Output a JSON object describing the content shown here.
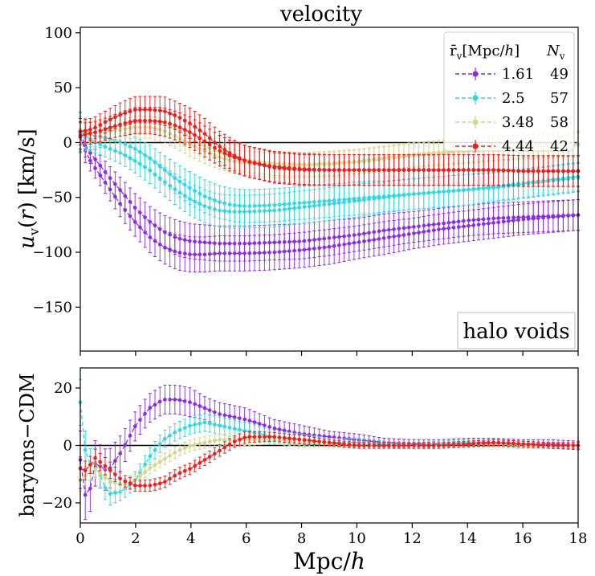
{
  "chart_data": [
    {
      "type": "line",
      "title": "velocity",
      "ylabel": "u_v(r) [km/s]",
      "xlabel": "",
      "xlim": [
        0,
        18
      ],
      "ylim": [
        -190,
        105
      ],
      "yticks": [
        -150,
        -100,
        -50,
        0,
        50,
        100
      ],
      "ytick_labels": [
        "−150",
        "−100",
        "−50",
        "0",
        "50",
        "100"
      ],
      "zero_line": 0,
      "annotation": "halo voids",
      "legend": {
        "position": "top-right",
        "header_radius": "r̄v[Mpc/h]",
        "header_count": "Nv",
        "entries": [
          {
            "name": "1.61",
            "count": "49",
            "color": "#8b2be2"
          },
          {
            "name": "2.5",
            "count": "57",
            "color": "#2ed8e0"
          },
          {
            "name": "3.48",
            "count": "58",
            "color": "#d2d68c"
          },
          {
            "name": "4.44",
            "count": "42",
            "color": "#ee1c1c"
          }
        ]
      },
      "x": [
        0,
        0.25,
        0.5,
        1,
        1.5,
        2,
        2.5,
        3,
        3.5,
        4,
        4.5,
        5,
        5.5,
        6,
        7,
        8,
        9,
        10,
        11,
        12,
        13,
        14,
        15,
        16,
        17,
        18
      ],
      "series": [
        {
          "name": "1.61 baryons",
          "color": "#8b2be2",
          "values": [
            5,
            -12,
            -22,
            -40,
            -58,
            -73,
            -86,
            -95,
            -100,
            -102,
            -102,
            -101,
            -101,
            -101,
            -100,
            -98,
            -95,
            -91,
            -87,
            -83,
            -79,
            -76,
            -73,
            -70,
            -68,
            -66
          ],
          "err": [
            14,
            10,
            9,
            10,
            12,
            13,
            14,
            15,
            16,
            16,
            16,
            16,
            16,
            16,
            16,
            16,
            16,
            15,
            15,
            14,
            14,
            14,
            14,
            14,
            14,
            14
          ]
        },
        {
          "name": "1.61 CDM",
          "color": "#8b2be2",
          "values": [
            8,
            -6,
            -14,
            -30,
            -45,
            -60,
            -72,
            -81,
            -87,
            -90,
            -91,
            -92,
            -92,
            -92,
            -91,
            -90,
            -87,
            -84,
            -80,
            -77,
            -74,
            -71,
            -69,
            -68,
            -67,
            -66
          ],
          "err": [
            14,
            10,
            9,
            10,
            12,
            13,
            14,
            15,
            16,
            16,
            16,
            16,
            16,
            16,
            16,
            16,
            16,
            15,
            15,
            14,
            14,
            14,
            14,
            14,
            14,
            14
          ]
        },
        {
          "name": "2.5 baryons",
          "color": "#2ed8e0",
          "values": [
            9,
            5,
            1,
            -5,
            -10,
            -17,
            -25,
            -35,
            -44,
            -52,
            -58,
            -62,
            -63,
            -63,
            -62,
            -59,
            -56,
            -53,
            -50,
            -47,
            -45,
            -43,
            -41,
            -38,
            -35,
            -32
          ],
          "err": [
            18,
            12,
            10,
            9,
            10,
            11,
            12,
            13,
            14,
            15,
            15,
            15,
            15,
            15,
            15,
            15,
            15,
            15,
            14,
            14,
            14,
            14,
            13,
            13,
            13,
            13
          ]
        },
        {
          "name": "2.5 CDM",
          "color": "#2ed8e0",
          "values": [
            10,
            8,
            6,
            4,
            0,
            -6,
            -14,
            -24,
            -34,
            -42,
            -49,
            -54,
            -57,
            -58,
            -57,
            -55,
            -53,
            -51,
            -49,
            -47,
            -45,
            -43,
            -40,
            -37,
            -34,
            -31
          ],
          "err": [
            18,
            12,
            10,
            9,
            10,
            11,
            12,
            13,
            14,
            15,
            15,
            15,
            15,
            15,
            15,
            15,
            15,
            15,
            14,
            14,
            14,
            14,
            13,
            13,
            13,
            13
          ]
        },
        {
          "name": "3.48 baryons",
          "color": "#d2d68c",
          "values": [
            12,
            10,
            9,
            10,
            12,
            14,
            14,
            11,
            5,
            -2,
            -8,
            -13,
            -17,
            -19,
            -21,
            -21,
            -20,
            -18,
            -15,
            -12,
            -10,
            -8,
            -6,
            -4,
            -3,
            -2
          ],
          "err": [
            12,
            10,
            9,
            9,
            9,
            10,
            10,
            11,
            11,
            11,
            11,
            11,
            11,
            11,
            11,
            11,
            11,
            11,
            11,
            11,
            11,
            11,
            11,
            11,
            11,
            11
          ]
        },
        {
          "name": "3.48 CDM",
          "color": "#d2d68c",
          "values": [
            10,
            9,
            9,
            12,
            16,
            19,
            20,
            18,
            12,
            4,
            -3,
            -9,
            -13,
            -16,
            -19,
            -20,
            -19,
            -17,
            -14,
            -11,
            -9,
            -7,
            -5,
            -3,
            -2,
            -1
          ],
          "err": [
            12,
            10,
            9,
            9,
            9,
            10,
            10,
            11,
            11,
            11,
            11,
            11,
            11,
            11,
            11,
            11,
            11,
            11,
            11,
            11,
            11,
            11,
            11,
            11,
            11,
            11
          ]
        },
        {
          "name": "4.44 baryons",
          "color": "#ee1c1c",
          "values": [
            6,
            8,
            9,
            13,
            17,
            20,
            20,
            19,
            15,
            9,
            1,
            -7,
            -13,
            -17,
            -22,
            -24,
            -25,
            -25,
            -25,
            -25,
            -25,
            -25,
            -25,
            -26,
            -26,
            -26
          ],
          "err": [
            12,
            10,
            10,
            10,
            11,
            12,
            12,
            13,
            13,
            14,
            14,
            14,
            14,
            14,
            14,
            14,
            14,
            14,
            14,
            14,
            14,
            14,
            14,
            14,
            14,
            14
          ]
        },
        {
          "name": "4.44 CDM",
          "color": "#ee1c1c",
          "values": [
            10,
            11,
            13,
            20,
            26,
            30,
            30,
            29,
            24,
            17,
            8,
            -3,
            -11,
            -17,
            -23,
            -25,
            -25,
            -25,
            -25,
            -25,
            -25,
            -25,
            -25,
            -26,
            -26,
            -26
          ],
          "err": [
            12,
            10,
            10,
            10,
            11,
            12,
            12,
            13,
            13,
            14,
            14,
            14,
            14,
            14,
            14,
            14,
            14,
            14,
            14,
            14,
            14,
            14,
            14,
            14,
            14,
            14
          ]
        }
      ]
    },
    {
      "type": "line",
      "title": "",
      "ylabel": "baryons−CDM",
      "xlabel": "Mpc/h",
      "xlim": [
        0,
        18
      ],
      "ylim": [
        -27,
        27
      ],
      "yticks": [
        -20,
        0,
        20
      ],
      "ytick_labels": [
        "−20",
        "0",
        "20"
      ],
      "xticks": [
        0,
        2,
        4,
        6,
        8,
        10,
        12,
        14,
        16,
        18
      ],
      "xtick_labels": [
        "0",
        "2",
        "4",
        "6",
        "8",
        "10",
        "12",
        "14",
        "16",
        "18"
      ],
      "zero_line": 0,
      "x": [
        0,
        0.25,
        0.5,
        1,
        1.5,
        2,
        2.5,
        3,
        3.5,
        4,
        4.5,
        5,
        5.5,
        6,
        7,
        8,
        9,
        10,
        11,
        12,
        13,
        14,
        15,
        16,
        17,
        18
      ],
      "series": [
        {
          "name": "1.61",
          "color": "#8b2be2",
          "values": [
            -5,
            -22,
            -6,
            -9,
            -2,
            7,
            13,
            16,
            16,
            15,
            13,
            11,
            10,
            9,
            6,
            4,
            3,
            2,
            1,
            0.5,
            0.5,
            1,
            1,
            0.5,
            0.5,
            0
          ],
          "err": [
            10,
            8,
            8,
            7,
            6,
            5,
            5,
            5,
            5,
            5,
            4,
            4,
            4,
            4,
            3,
            3,
            2,
            2,
            1.5,
            1.5,
            1.5,
            1.5,
            1.5,
            1.5,
            1.5,
            1.5
          ]
        },
        {
          "name": "2.5",
          "color": "#2ed8e0",
          "values": [
            15,
            -8,
            -5,
            -17,
            -16,
            -12,
            -4,
            2,
            5,
            7,
            8,
            7,
            6,
            5,
            3,
            2,
            1,
            1,
            0.5,
            0,
            0.5,
            1,
            0.5,
            0.5,
            0,
            0
          ],
          "err": [
            8,
            6,
            5,
            4,
            3,
            3,
            3,
            3,
            3,
            3,
            3,
            3,
            3,
            3,
            2,
            2,
            1.5,
            1.5,
            1,
            1,
            1,
            1,
            1,
            1,
            1,
            1
          ]
        },
        {
          "name": "3.48",
          "color": "#d2d68c",
          "values": [
            -12,
            -10,
            -8,
            -12,
            -14,
            -12,
            -8,
            -5,
            -2,
            0,
            1,
            2,
            2,
            2,
            2,
            1,
            0.5,
            0,
            0,
            0,
            0,
            0.5,
            0.5,
            0,
            0,
            0
          ],
          "err": [
            4,
            3,
            3,
            3,
            2,
            2,
            2,
            2,
            2,
            2,
            2,
            2,
            2,
            2,
            1.5,
            1.5,
            1,
            1,
            1,
            1,
            1,
            1,
            1,
            1,
            1,
            1
          ]
        },
        {
          "name": "4.44",
          "color": "#ee1c1c",
          "values": [
            -8,
            -9,
            -4,
            -8,
            -12,
            -14,
            -14,
            -13,
            -10,
            -8,
            -5,
            -2,
            1,
            3,
            3,
            2,
            1,
            0,
            0,
            0,
            0,
            0.5,
            1,
            0.5,
            0,
            0
          ],
          "err": [
            4,
            3,
            3,
            3,
            2,
            2,
            2,
            2,
            2,
            2,
            2,
            2,
            2,
            2,
            1.5,
            1.5,
            1,
            1,
            1,
            1,
            1,
            1,
            1,
            1,
            1,
            1
          ]
        }
      ]
    }
  ]
}
